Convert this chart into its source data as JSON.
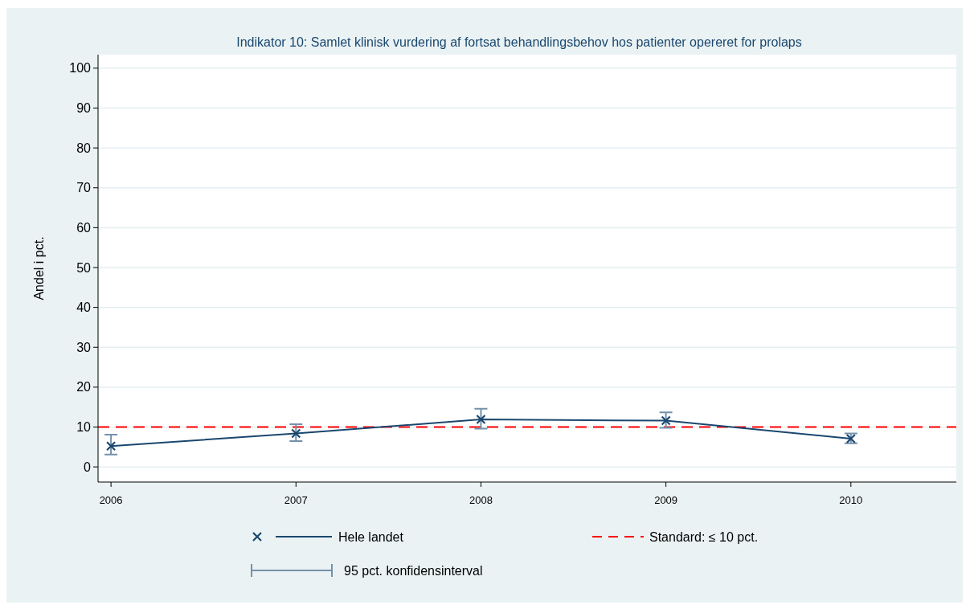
{
  "chart_data": {
    "type": "line",
    "title": "Indikator 10: Samlet klinisk vurdering af fortsat behandlingsbehov hos patienter opereret for prolaps",
    "ylabel": "Andel i pct.",
    "x": [
      2006,
      2007,
      2008,
      2009,
      2010
    ],
    "series": [
      {
        "name": "Hele landet",
        "color": "#1a476f",
        "values": [
          5.2,
          8.4,
          11.9,
          11.6,
          7.1
        ],
        "errors": [
          [
            3.1,
            8.1
          ],
          [
            6.5,
            10.7
          ],
          [
            9.6,
            14.6
          ],
          [
            9.8,
            13.7
          ],
          [
            5.9,
            8.4
          ]
        ]
      }
    ],
    "xlim": [
      2005.93,
      2010.57
    ],
    "xticks": [
      2006,
      2007,
      2008,
      2009,
      2010
    ],
    "ylim": [
      -3.8,
      103.4
    ],
    "yticks": [
      0,
      10,
      20,
      30,
      40,
      50,
      60,
      70,
      80,
      90,
      100
    ],
    "ref_lines": [
      {
        "axis": "y",
        "value": 10,
        "label": "Standard: ≤ 10 pct.",
        "color": "#ff0000",
        "line_style": "dashed"
      }
    ],
    "annotations": [
      "95 pct. konfidensinterval"
    ],
    "grid": "y",
    "legend": "bottom",
    "marker": "cross",
    "line_style": "solid"
  }
}
